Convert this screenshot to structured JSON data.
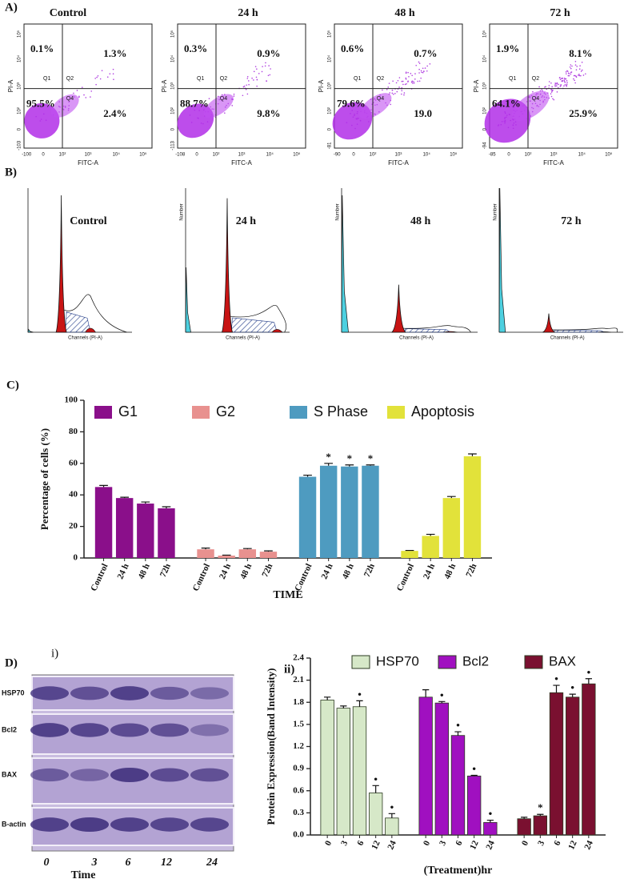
{
  "panel_a": {
    "label": "A)",
    "plots": [
      {
        "title": "Control",
        "upper_left": "0.1%",
        "upper_right": "1.3%",
        "lower_left": "95.5%",
        "lower_right": "2.4%",
        "quadrant_names": [
          "Q1",
          "Q2",
          "Q4"
        ],
        "y_label": "PI-A",
        "x_label": "FITC-A",
        "xticks": [
          "-100",
          "0",
          "10²",
          "10³",
          "10⁴",
          "10⁵"
        ],
        "yticks": [
          "-103",
          "0",
          "10²",
          "10³",
          "10⁴",
          "10⁵"
        ]
      },
      {
        "title": "24 h",
        "upper_left": "0.3%",
        "upper_right": "0.9%",
        "lower_left": "88.7%",
        "lower_right": "9.8%",
        "quadrant_names": [
          "Q1",
          "Q2",
          "Q4"
        ],
        "y_label": "PI-A",
        "x_label": "FITC-A",
        "xticks": [
          "-108",
          "0",
          "10²",
          "10³",
          "10⁴",
          "10⁵"
        ],
        "yticks": [
          "-113",
          "0",
          "10²",
          "10³",
          "10⁴",
          "10⁵"
        ]
      },
      {
        "title": "48 h",
        "upper_left": "0.6%",
        "upper_right": "0.7%",
        "lower_left": "79.6%",
        "lower_right": "19.0",
        "quadrant_names": [
          "Q1",
          "Q2",
          "Q4"
        ],
        "y_label": "PI-A",
        "x_label": "FITC-A",
        "xticks": [
          "-90",
          "0",
          "10²",
          "10³",
          "10⁴",
          "10⁵"
        ],
        "yticks": [
          "-81",
          "0",
          "10²",
          "10³",
          "10⁴",
          "10⁵"
        ]
      },
      {
        "title": "72 h",
        "upper_left": "1.9%",
        "upper_right": "8.1%",
        "lower_left": "64.1%",
        "lower_right": "25.9%",
        "quadrant_names": [
          "Q1",
          "Q2",
          "Q4"
        ],
        "y_label": "PI-A",
        "x_label": "FITC-A",
        "xticks": [
          "-85",
          "0",
          "10²",
          "10³",
          "10⁴",
          "10⁵"
        ],
        "yticks": [
          "-94",
          "0",
          "10²",
          "10³",
          "10⁴",
          "10⁵"
        ]
      }
    ]
  },
  "panel_b": {
    "label": "B)",
    "plots": [
      {
        "title": "Control",
        "x_label": "Channels (PI-A)"
      },
      {
        "title": "24 h",
        "x_label": "Channels (PI-A)",
        "y_label": "Number"
      },
      {
        "title": "48 h",
        "x_label": "Channels (PI-A)",
        "y_label": "Number"
      },
      {
        "title": "72 h",
        "x_label": "Channels (PI-A)",
        "y_label": "Number"
      }
    ]
  },
  "chart_data": [
    {
      "type": "bar",
      "panel_label": "C)",
      "y_label": "Percentage of cells (%)",
      "x_label": "TIME",
      "categories": [
        "Control",
        "24 h",
        "48 h",
        "72h"
      ],
      "series": [
        {
          "name": "G1",
          "color": "#8a0f8a",
          "values": [
            45,
            38,
            34.5,
            31.5
          ],
          "errors": [
            1,
            0.5,
            1,
            1
          ],
          "significance": [
            null,
            null,
            null,
            null
          ]
        },
        {
          "name": "G2",
          "color": "#e8918f",
          "values": [
            5.5,
            1.5,
            5.5,
            4
          ],
          "errors": [
            0.8,
            0.3,
            0.5,
            0.5
          ],
          "significance": [
            null,
            null,
            null,
            null
          ]
        },
        {
          "name": "S Phase",
          "color": "#4e9bc0",
          "values": [
            51.5,
            58.5,
            58,
            58.5
          ],
          "errors": [
            1,
            1.5,
            1,
            0.5
          ],
          "significance": [
            null,
            "*",
            "*",
            "*"
          ]
        },
        {
          "name": "Apoptosis",
          "color": "#e2e23a",
          "values": [
            4.5,
            14,
            38,
            64.5
          ],
          "errors": [
            0.3,
            1,
            1,
            1.5
          ],
          "significance": [
            null,
            null,
            null,
            null
          ]
        }
      ],
      "ylim": [
        0,
        100
      ],
      "yticks": [
        0,
        20,
        40,
        60,
        80,
        100
      ],
      "legend": "top"
    },
    {
      "type": "bar",
      "panel_label": "ii)",
      "y_label": "Protein Expression(Band Intensity)",
      "x_label": "(Treatment)hr",
      "categories": [
        "0",
        "3",
        "6",
        "12",
        "24"
      ],
      "series": [
        {
          "name": "HSP70",
          "color": "#d6e8c8",
          "values": [
            1.83,
            1.72,
            1.74,
            0.57,
            0.23
          ],
          "errors": [
            0.04,
            0.03,
            0.08,
            0.1,
            0.06
          ],
          "significance": [
            null,
            null,
            "•",
            "•",
            "•"
          ]
        },
        {
          "name": "Bcl2",
          "color": "#a010c0",
          "values": [
            1.87,
            1.79,
            1.35,
            0.8,
            0.17
          ],
          "errors": [
            0.1,
            0.02,
            0.05,
            0.01,
            0.03
          ],
          "significance": [
            null,
            "•",
            "•",
            "•",
            "•"
          ]
        },
        {
          "name": "BAX",
          "color": "#7a1030",
          "values": [
            0.22,
            0.26,
            1.93,
            1.87,
            2.05
          ],
          "errors": [
            0.02,
            0.02,
            0.1,
            0.04,
            0.07
          ],
          "significance": [
            null,
            "*",
            "•",
            "•",
            "•"
          ]
        }
      ],
      "ylim": [
        0,
        2.4
      ],
      "yticks": [
        {
          "value": 0,
          "label": "0.0"
        },
        0.3,
        0.6,
        0.9,
        1.2,
        1.5,
        1.8,
        2.1,
        2.4
      ],
      "legend": "top",
      "bar_edge": "#2b3a20"
    }
  ],
  "panel_d_blot": {
    "label": "D)",
    "sub_label": "i)",
    "proteins": [
      "HSP70",
      "Bcl2",
      "BAX",
      "B-actin"
    ],
    "times": [
      "0",
      "3",
      "6",
      "12",
      "24"
    ],
    "x_label": "Time"
  }
}
